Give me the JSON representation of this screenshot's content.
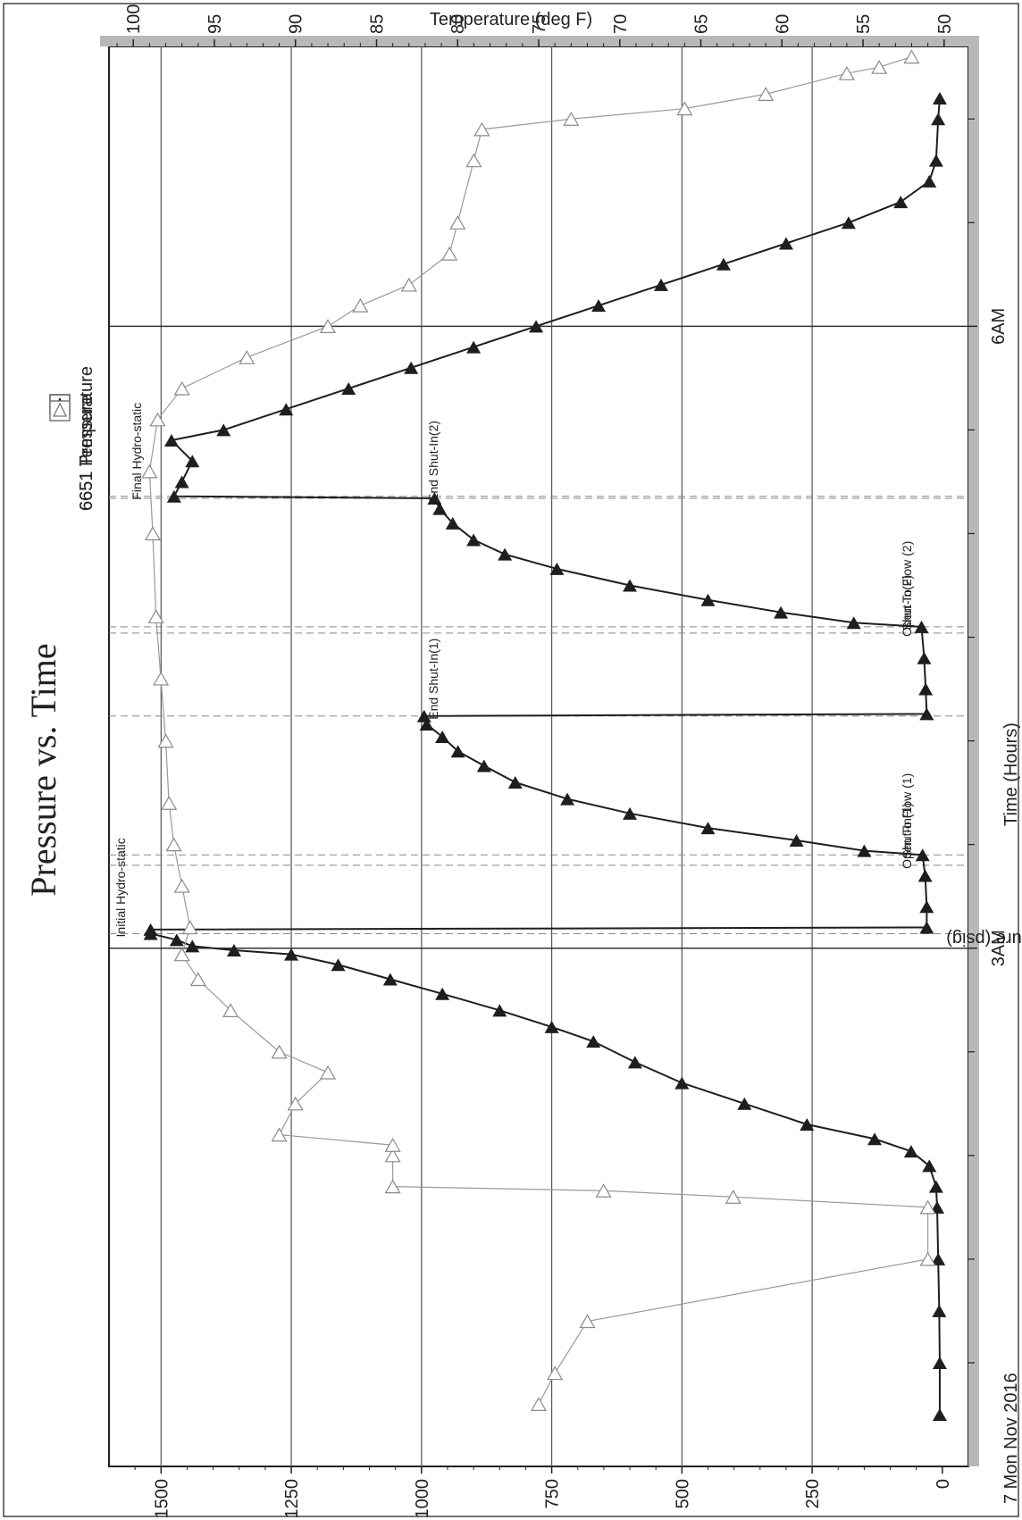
{
  "chart_data": {
    "type": "line",
    "title": "Pressure vs. Time",
    "xlabel": "Time (Hours)",
    "ylabel_left": "Pressure (psig)",
    "ylabel_right": "Temperature (deg F)",
    "date_label": "7 Mon Nov 2016",
    "x_unit": "hours after midnight",
    "xlim": [
      0.5,
      7.35
    ],
    "ylim_left": [
      -50,
      1600
    ],
    "ylim_right": [
      48.5,
      101.5
    ],
    "x_ticks_major": [
      {
        "value": 3,
        "label": "3AM"
      },
      {
        "value": 6,
        "label": "6AM"
      }
    ],
    "x_ticks_minor": [
      1,
      1.5,
      2,
      2.5,
      3.5,
      4,
      4.5,
      5,
      5.5,
      6.5,
      7
    ],
    "y_ticks_left": [
      {
        "value": 0,
        "label": "0"
      },
      {
        "value": 250,
        "label": "250"
      },
      {
        "value": 500,
        "label": "500"
      },
      {
        "value": 750,
        "label": "750"
      },
      {
        "value": 1000,
        "label": "1000"
      },
      {
        "value": 1250,
        "label": "1250"
      },
      {
        "value": 1500,
        "label": "1500"
      }
    ],
    "y_ticks_right": [
      {
        "value": 50,
        "label": "50"
      },
      {
        "value": 55,
        "label": "55"
      },
      {
        "value": 60,
        "label": "60"
      },
      {
        "value": 65,
        "label": "65"
      },
      {
        "value": 70,
        "label": "70"
      },
      {
        "value": 75,
        "label": "75"
      },
      {
        "value": 80,
        "label": "80"
      },
      {
        "value": 85,
        "label": "85"
      },
      {
        "value": 90,
        "label": "90"
      },
      {
        "value": 95,
        "label": "95"
      },
      {
        "value": 100,
        "label": "100"
      }
    ],
    "grid": true,
    "legend": [
      {
        "name": "6651 Pressure",
        "marker": "filled-triangle",
        "position": "top-left"
      },
      {
        "name": "6651 Temperature",
        "marker": "open-triangle",
        "position": "top-right"
      }
    ],
    "series": [
      {
        "name": "6651 Pressure",
        "axis": "left",
        "color": "#1e1e1e",
        "marker": "filled",
        "points": [
          [
            0.75,
            5
          ],
          [
            1.0,
            5
          ],
          [
            1.25,
            6
          ],
          [
            1.5,
            8
          ],
          [
            1.75,
            10
          ],
          [
            1.85,
            12
          ],
          [
            1.95,
            25
          ],
          [
            2.02,
            60
          ],
          [
            2.08,
            130
          ],
          [
            2.15,
            260
          ],
          [
            2.25,
            380
          ],
          [
            2.35,
            500
          ],
          [
            2.45,
            590
          ],
          [
            2.55,
            670
          ],
          [
            2.62,
            750
          ],
          [
            2.7,
            850
          ],
          [
            2.78,
            960
          ],
          [
            2.85,
            1060
          ],
          [
            2.92,
            1160
          ],
          [
            2.97,
            1250
          ],
          [
            2.99,
            1360
          ],
          [
            3.01,
            1440
          ],
          [
            3.04,
            1470
          ],
          [
            3.07,
            1520
          ],
          [
            3.09,
            1520
          ],
          [
            3.1,
            30
          ],
          [
            3.2,
            30
          ],
          [
            3.35,
            33
          ],
          [
            3.45,
            38
          ],
          [
            3.47,
            150
          ],
          [
            3.52,
            280
          ],
          [
            3.58,
            450
          ],
          [
            3.65,
            600
          ],
          [
            3.72,
            720
          ],
          [
            3.8,
            820
          ],
          [
            3.88,
            880
          ],
          [
            3.95,
            930
          ],
          [
            4.02,
            960
          ],
          [
            4.08,
            990
          ],
          [
            4.12,
            995
          ],
          [
            4.13,
            30
          ],
          [
            4.25,
            32
          ],
          [
            4.4,
            35
          ],
          [
            4.55,
            40
          ],
          [
            4.57,
            170
          ],
          [
            4.62,
            310
          ],
          [
            4.68,
            450
          ],
          [
            4.75,
            600
          ],
          [
            4.83,
            740
          ],
          [
            4.9,
            840
          ],
          [
            4.97,
            900
          ],
          [
            5.05,
            940
          ],
          [
            5.12,
            965
          ],
          [
            5.17,
            975
          ],
          [
            5.18,
            1475
          ],
          [
            5.25,
            1460
          ],
          [
            5.35,
            1440
          ],
          [
            5.45,
            1480
          ],
          [
            5.5,
            1380
          ],
          [
            5.6,
            1260
          ],
          [
            5.7,
            1140
          ],
          [
            5.8,
            1020
          ],
          [
            5.9,
            900
          ],
          [
            6.0,
            780
          ],
          [
            6.1,
            660
          ],
          [
            6.2,
            540
          ],
          [
            6.3,
            420
          ],
          [
            6.4,
            300
          ],
          [
            6.5,
            180
          ],
          [
            6.6,
            80
          ],
          [
            6.7,
            25
          ],
          [
            6.8,
            12
          ],
          [
            7.0,
            8
          ],
          [
            7.1,
            5
          ]
        ]
      },
      {
        "name": "6651 Temperature",
        "axis": "right",
        "color": "#9a9a9a",
        "marker": "open",
        "points": [
          [
            0.8,
            75
          ],
          [
            0.95,
            74
          ],
          [
            1.2,
            72
          ],
          [
            1.5,
            51
          ],
          [
            1.75,
            51
          ],
          [
            1.8,
            63
          ],
          [
            1.83,
            71
          ],
          [
            1.85,
            84
          ],
          [
            2.0,
            84
          ],
          [
            2.05,
            84
          ],
          [
            2.1,
            91
          ],
          [
            2.25,
            90
          ],
          [
            2.4,
            88
          ],
          [
            2.5,
            91
          ],
          [
            2.7,
            94
          ],
          [
            2.85,
            96
          ],
          [
            2.97,
            97
          ],
          [
            3.1,
            96.5
          ],
          [
            3.3,
            97
          ],
          [
            3.5,
            97.5
          ],
          [
            3.7,
            97.8
          ],
          [
            4.0,
            98
          ],
          [
            4.3,
            98.3
          ],
          [
            4.6,
            98.6
          ],
          [
            5.0,
            98.8
          ],
          [
            5.3,
            99
          ],
          [
            5.55,
            98.5
          ],
          [
            5.7,
            97
          ],
          [
            5.85,
            93
          ],
          [
            6.0,
            88
          ],
          [
            6.1,
            86
          ],
          [
            6.2,
            83
          ],
          [
            6.35,
            80.5
          ],
          [
            6.5,
            80
          ],
          [
            6.8,
            79
          ],
          [
            6.95,
            78.5
          ],
          [
            7.0,
            73
          ],
          [
            7.05,
            66
          ],
          [
            7.12,
            61
          ],
          [
            7.22,
            56
          ],
          [
            7.25,
            54
          ],
          [
            7.3,
            52
          ]
        ]
      }
    ],
    "annotations": [
      {
        "text": "Initial Hydro-static",
        "x": 3.07
      },
      {
        "text": "Open To Flow (1)",
        "x": 3.4
      },
      {
        "text": "Shut-In(1)",
        "x": 3.45
      },
      {
        "text": "End Shut-In(1)",
        "x": 4.12
      },
      {
        "text": "Open To Flow (2)",
        "x": 4.52
      },
      {
        "text": "Shut-In(2)",
        "x": 4.55
      },
      {
        "text": "End Shut-In(2)",
        "x": 5.17
      },
      {
        "text": "Final Hydro-static",
        "x": 5.18
      }
    ]
  }
}
